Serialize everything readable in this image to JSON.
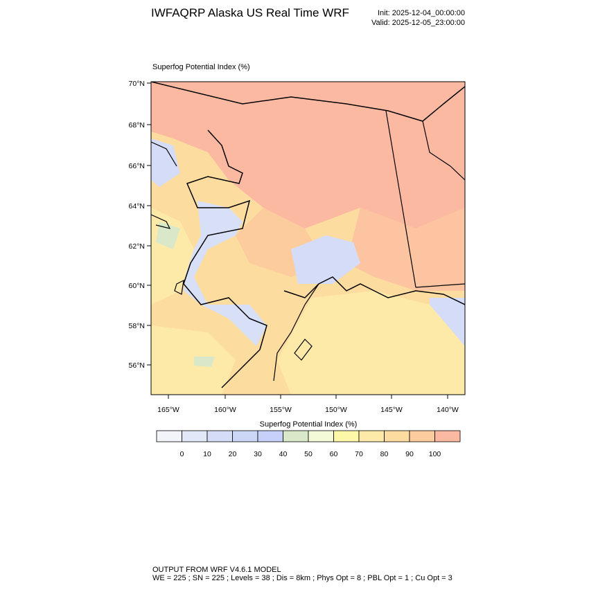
{
  "header": {
    "title": "IWFAQRP Alaska US Real Time WRF",
    "init": "Init: 2025-12-04_00:00:00",
    "valid": "Valid: 2025-12-05_23:00:00"
  },
  "map": {
    "title": "Superfog Potential Index   (%)",
    "lat_labels": [
      "70°N",
      "68°N",
      "66°N",
      "64°N",
      "62°N",
      "60°N",
      "58°N",
      "56°N"
    ],
    "lon_labels": [
      "165°W",
      "160°W",
      "155°W",
      "150°W",
      "145°W",
      "140°W"
    ]
  },
  "colorbar": {
    "title": "Superfog Potential Index  (%)",
    "colors": [
      "#f2f4fa",
      "#e2e8f8",
      "#d4dcf8",
      "#ccd6f6",
      "#c6d0f8",
      "#d8e8c8",
      "#f4fad8",
      "#fdf7a8",
      "#fdeaa8",
      "#fddca0",
      "#fccc9c",
      "#fcb9a2"
    ],
    "levels": [
      0,
      10,
      20,
      30,
      40,
      50,
      60,
      70,
      80,
      90,
      100
    ]
  },
  "footer": {
    "model": "OUTPUT FROM WRF V4.6.1 MODEL",
    "details": "WE = 225 ; SN = 225 ; Levels = 38 ; Dis = 8km ; Phys Opt = 8 ; PBL Opt = 1 ; Cu Opt = 3"
  }
}
